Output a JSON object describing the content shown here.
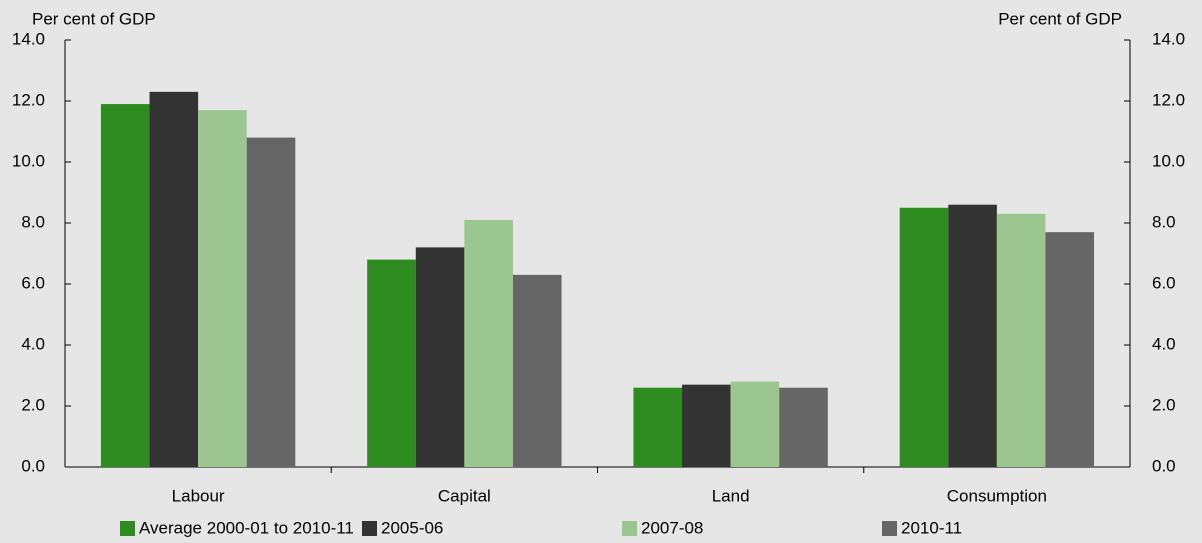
{
  "chart_data": {
    "type": "bar",
    "y_label": "Per cent of GDP",
    "y2_label": "Per cent of GDP",
    "categories": [
      "Labour",
      "Capital",
      "Land",
      "Consumption"
    ],
    "series": [
      {
        "name": "Average 2000-01 to 2010-11",
        "color": "#2e8b1f",
        "values": [
          11.9,
          6.8,
          2.6,
          8.5
        ]
      },
      {
        "name": "2005-06",
        "color": "#333333",
        "values": [
          12.3,
          7.2,
          2.7,
          8.6
        ]
      },
      {
        "name": "2007-08",
        "color": "#9cc68f",
        "values": [
          11.7,
          8.1,
          2.8,
          8.3
        ]
      },
      {
        "name": "2010-11",
        "color": "#666666",
        "values": [
          10.8,
          6.3,
          2.6,
          7.7
        ]
      }
    ],
    "ylim": [
      0,
      14
    ],
    "yticks": [
      {
        "value": 0,
        "label": "0.0"
      },
      {
        "value": 2,
        "label": "2.0"
      },
      {
        "value": 4,
        "label": "4.0"
      },
      {
        "value": 6,
        "label": "6.0"
      },
      {
        "value": 8,
        "label": "8.0"
      },
      {
        "value": 10,
        "label": "10.0"
      },
      {
        "value": 12,
        "label": "12.0"
      },
      {
        "value": 14,
        "label": "14.0"
      }
    ],
    "y2lim": [
      0,
      14
    ],
    "y2ticks": [
      {
        "value": 0,
        "label": "0.0"
      },
      {
        "value": 2,
        "label": "2.0"
      },
      {
        "value": 4,
        "label": "4.0"
      },
      {
        "value": 6,
        "label": "6.0"
      },
      {
        "value": 8,
        "label": "8.0"
      },
      {
        "value": 10,
        "label": "10.0"
      },
      {
        "value": 12,
        "label": "12.0"
      },
      {
        "value": 14,
        "label": "14.0"
      }
    ]
  }
}
